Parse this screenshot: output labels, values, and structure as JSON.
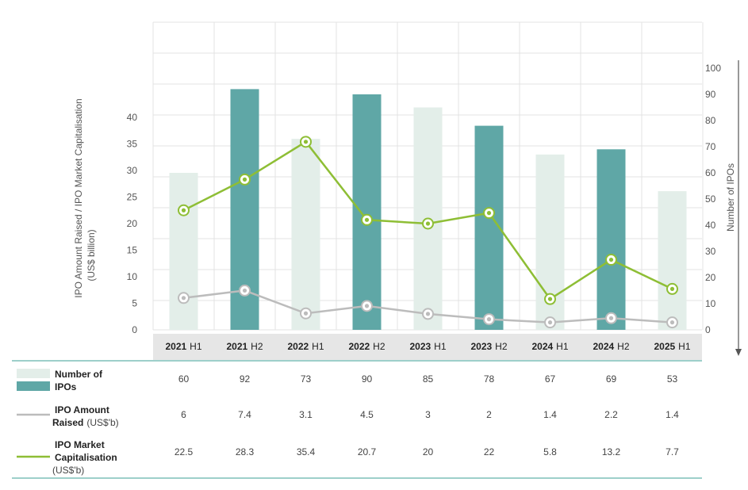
{
  "colors": {
    "bar_light": "#e3eee9",
    "bar_dark": "#5fa7a6",
    "amount_line": "#bcbcbc",
    "cap_line": "#8ebe35",
    "header_band": "#e6e6e6",
    "table_rule": "#7dbfb8",
    "grid": "#e3e3e3"
  },
  "chart_data": {
    "type": "bar",
    "categories": [
      {
        "year": "2021",
        "half": "H1"
      },
      {
        "year": "2021",
        "half": "H2"
      },
      {
        "year": "2022",
        "half": "H1"
      },
      {
        "year": "2022",
        "half": "H2"
      },
      {
        "year": "2023",
        "half": "H1"
      },
      {
        "year": "2023",
        "half": "H2"
      },
      {
        "year": "2024",
        "half": "H1"
      },
      {
        "year": "2024",
        "half": "H2"
      },
      {
        "year": "2025",
        "half": "H1"
      }
    ],
    "left_axis": {
      "title_line1": "IPO Amount Raised / IPO Market Capitalisation",
      "title_line2": "(US$ billion)",
      "ticks": [
        "0",
        "5",
        "10",
        "15",
        "20",
        "25",
        "30",
        "35",
        "40"
      ],
      "ylim": [
        0,
        40
      ]
    },
    "right_axis": {
      "title": "Number of IPOs",
      "ticks": [
        "0",
        "10",
        "20",
        "30",
        "40",
        "50",
        "60",
        "70",
        "80",
        "90",
        "100"
      ],
      "ylim": [
        0,
        100
      ]
    },
    "series": [
      {
        "key": "ipos",
        "legend_bold": "Number of IPOs",
        "legend_unit": "",
        "kind": "bar",
        "axis": "right",
        "values": [
          60,
          92,
          73,
          90,
          85,
          78,
          67,
          69,
          53
        ],
        "labels": [
          "60",
          "92",
          "73",
          "90",
          "85",
          "78",
          "67",
          "69",
          "53"
        ]
      },
      {
        "key": "amount",
        "legend_bold": "IPO Amount Raised",
        "legend_unit": "(US$'b)",
        "kind": "line",
        "axis": "left",
        "values": [
          6,
          7.4,
          3.1,
          4.5,
          3,
          2,
          1.4,
          2.2,
          1.4
        ],
        "labels": [
          "6",
          "7.4",
          "3.1",
          "4.5",
          "3",
          "2",
          "1.4",
          "2.2",
          "1.4"
        ]
      },
      {
        "key": "cap",
        "legend_bold": "IPO Market Capitalisation",
        "legend_unit": "(US$'b)",
        "kind": "line",
        "axis": "left",
        "values": [
          22.5,
          28.3,
          35.4,
          20.7,
          20,
          22,
          5.8,
          13.2,
          7.7
        ],
        "labels": [
          "22.5",
          "28.3",
          "35.4",
          "20.7",
          "20",
          "22",
          "5.8",
          "13.2",
          "7.7"
        ]
      }
    ],
    "grid": true,
    "legend_position": "table-left"
  }
}
